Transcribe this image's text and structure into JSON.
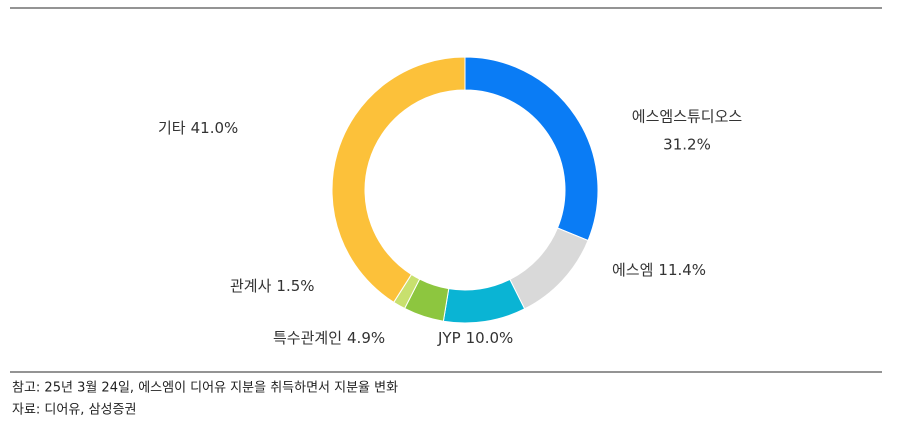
{
  "chart_data": {
    "type": "donut",
    "categories": [
      "에스엠스튜디오스",
      "에스엠",
      "JYP",
      "특수관계인",
      "관계사",
      "기타"
    ],
    "values": [
      31.2,
      11.4,
      10.0,
      4.9,
      1.5,
      41.0
    ],
    "value_labels": [
      "31.2%",
      "11.4%",
      "10.0%",
      "4.9%",
      "1.5%",
      "41.0%"
    ],
    "colors": [
      "#0a7cf5",
      "#d9d9d9",
      "#0ab4d4",
      "#8dc63f",
      "#c8e06e",
      "#fcc13a"
    ]
  },
  "notes": [
    "참고: 25년 3월 24일, 에스엠이 디어유 지분을 취득하면서 지분율 변화",
    "자료: 디어유, 삼성증권"
  ]
}
